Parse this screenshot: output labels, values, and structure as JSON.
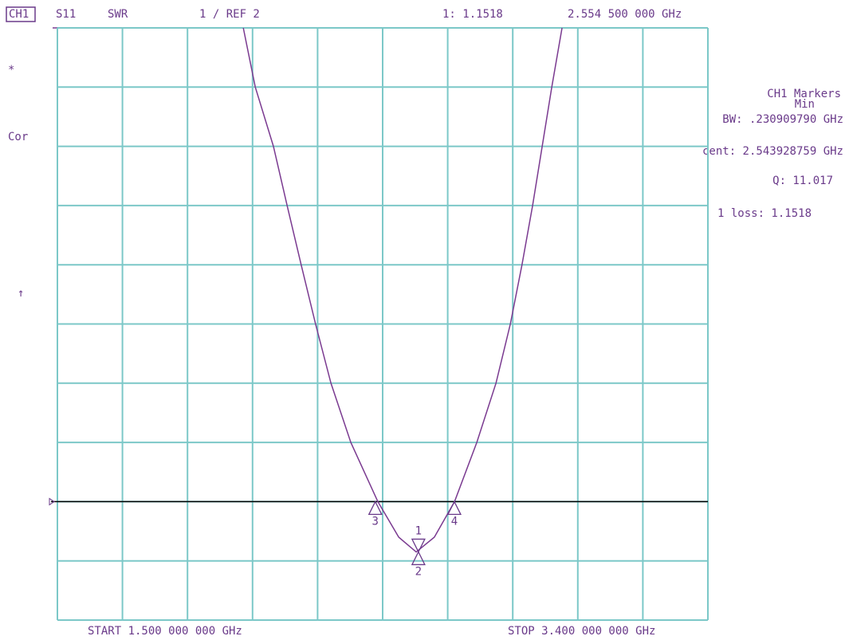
{
  "chart_data": {
    "type": "line",
    "channel": "CH1",
    "parameter": "S11",
    "format": "SWR",
    "scale_label": "1 / REF 2",
    "marker_readout": "1: 1.1518",
    "marker_freq": "2.554 500 000 GHz",
    "status_star": "*",
    "status_cor": "Cor",
    "status_arrow": "↑",
    "panel": [
      "CH1 Markers",
      "Min",
      "BW: .230909790 GHz",
      "cent: 2.543928759 GHz",
      "Q: 11.017",
      "1 loss: 1.1518"
    ],
    "start_label": "START 1.500 000 000 GHz",
    "stop_label": "STOP 3.400 000 000 GHz",
    "color": "#7a3a90",
    "x": [
      2.043,
      2.078,
      2.131,
      2.171,
      2.212,
      2.254,
      2.299,
      2.357,
      2.436,
      2.497,
      2.548,
      2.601,
      2.66,
      2.725,
      2.781,
      2.823,
      2.857,
      2.888,
      2.916,
      2.944,
      2.974
    ],
    "values": [
      10,
      9,
      8,
      7,
      6,
      5,
      4,
      3,
      2,
      1.4,
      1.15,
      1.4,
      2,
      3,
      4,
      5,
      6,
      7,
      8,
      9,
      10
    ],
    "reference": 2,
    "markers": [
      {
        "label": "1",
        "x": 2.5545,
        "y": 1.1518,
        "dir": "down"
      },
      {
        "label": "2",
        "x": 2.5545,
        "y": 1.1518,
        "dir": "up"
      },
      {
        "label": "3",
        "x": 2.4285,
        "y": 2,
        "dir": "up"
      },
      {
        "label": "4",
        "x": 2.6594,
        "y": 2,
        "dir": "up"
      }
    ],
    "xlim": [
      1.5,
      3.4
    ],
    "ylim": [
      0,
      10
    ],
    "xticks": [
      1.5,
      1.69,
      1.88,
      2.07,
      2.26,
      2.45,
      2.64,
      2.83,
      3.02,
      3.21,
      3.4
    ],
    "yticks": [
      0,
      1,
      2,
      3,
      4,
      5,
      6,
      7,
      8,
      9,
      10
    ],
    "grid": true
  }
}
